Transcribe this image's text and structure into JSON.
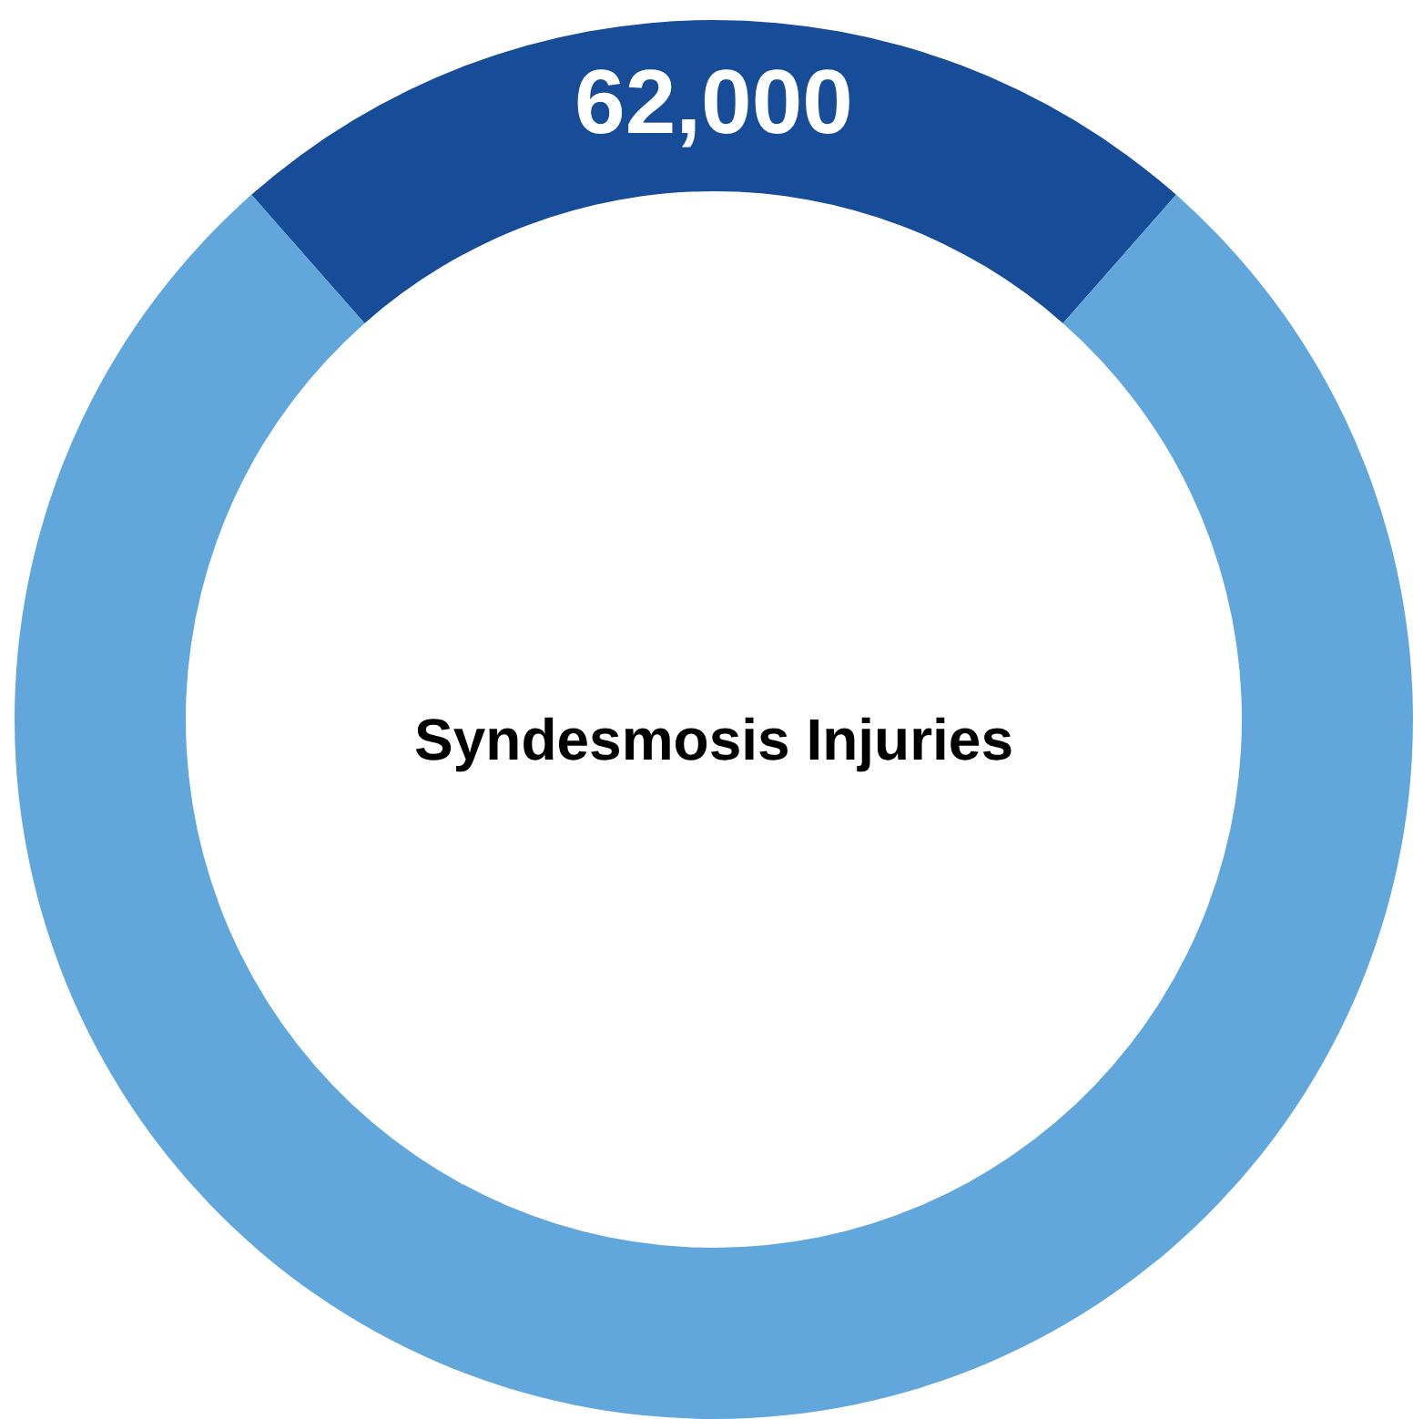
{
  "chart_data": {
    "type": "donut",
    "title": "Syndesmosis Injuries",
    "categories": [
      null,
      null
    ],
    "values": [
      62000,
      207600
    ],
    "colors": [
      "#174c99",
      "#62a7dc"
    ],
    "value_labels": [
      "62,000",
      null
    ]
  }
}
